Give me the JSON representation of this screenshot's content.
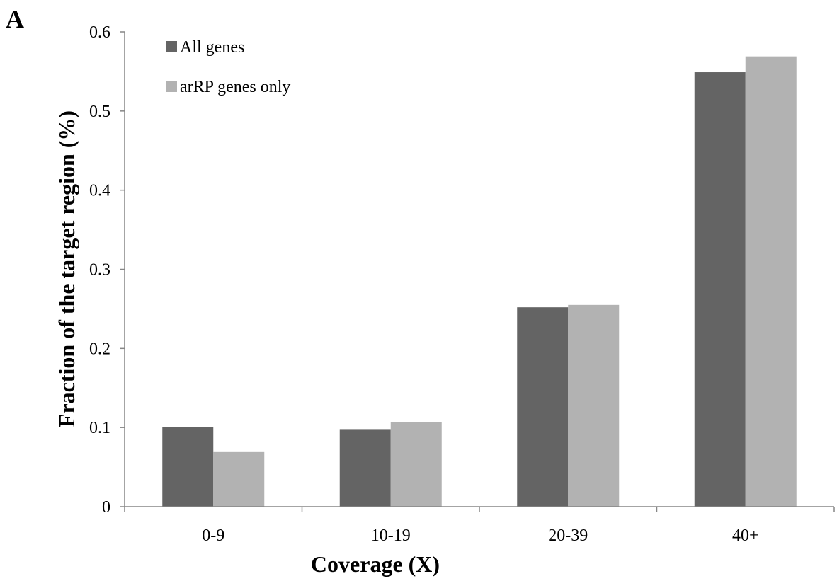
{
  "panel_label": "A",
  "chart_data": {
    "type": "bar",
    "categories": [
      "0-9",
      "10-19",
      "20-39",
      "40+"
    ],
    "series": [
      {
        "name": "All genes",
        "values": [
          0.101,
          0.098,
          0.252,
          0.549
        ],
        "color": "#646464"
      },
      {
        "name": "arRP genes only",
        "values": [
          0.069,
          0.107,
          0.255,
          0.569
        ],
        "color": "#b2b2b2"
      }
    ],
    "xlabel": "Coverage (X)",
    "ylabel": "Fraction of the target region (%)",
    "ylim": [
      0,
      0.6
    ],
    "yticks": [
      "0",
      "0.1",
      "0.2",
      "0.3",
      "0.4",
      "0.5",
      "0.6"
    ],
    "grid": false,
    "legend_position": "top-left"
  }
}
